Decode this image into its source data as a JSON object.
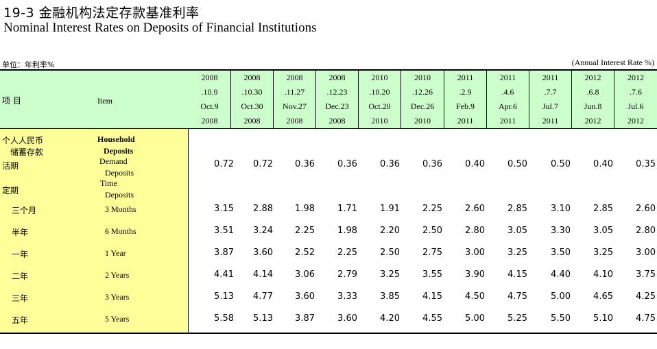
{
  "title_cn": "19-3  金融机构法定存款基准利率",
  "title_en": "Nominal Interest Rates on Deposits of Financial Institutions",
  "unit_cn": "单位：年利率%",
  "unit_en": "(Annual Interest Rate %)",
  "header": {
    "item_cn": "项  目",
    "item_en": "Item",
    "columns": [
      [
        "2008",
        ".10.9",
        "Oct.9",
        "2008"
      ],
      [
        "2008",
        ".10.30",
        "Oct.30",
        "2008"
      ],
      [
        "2008",
        ".11.27",
        "Nov.27",
        "2008"
      ],
      [
        "2008",
        ".12.23",
        "Dec.23",
        "2008"
      ],
      [
        "2010",
        ".10.20",
        "Oct.20",
        "2010"
      ],
      [
        "2010",
        ".12.26",
        "Dec.26",
        "2010"
      ],
      [
        "2011",
        ".2.9",
        "Feb.9",
        "2011"
      ],
      [
        "2011",
        ".4.6",
        "Apr.6",
        "2011"
      ],
      [
        "2011",
        ".7.7",
        "Jul.7",
        "2011"
      ],
      [
        "2012",
        ".6.8",
        "Jun.8",
        "2012"
      ],
      [
        "2012",
        ".7.6",
        "Jul.6",
        "2012"
      ]
    ]
  },
  "labels": {
    "household_cn": "个人人民币",
    "savings_cn": "储蓄存款",
    "household_en": "Household",
    "deposits_en": "Deposits",
    "demand_cn": "活期",
    "demand_en_1": "Demand",
    "demand_en_2": "Deposits",
    "time_cn": "定期",
    "time_en_1": "Time",
    "time_en_2": "Deposits"
  },
  "rows": [
    {
      "cn": "活期",
      "en": "",
      "values": [
        "0.72",
        "0.72",
        "0.36",
        "0.36",
        "0.36",
        "0.36",
        "0.40",
        "0.50",
        "0.50",
        "0.40",
        "0.35"
      ]
    },
    {
      "cn": "三个月",
      "en": "3 Months",
      "values": [
        "3.15",
        "2.88",
        "1.98",
        "1.71",
        "1.91",
        "2.25",
        "2.60",
        "2.85",
        "3.10",
        "2.85",
        "2.60"
      ]
    },
    {
      "cn": "半年",
      "en": "6 Months",
      "values": [
        "3.51",
        "3.24",
        "2.25",
        "1.98",
        "2.20",
        "2.50",
        "2.80",
        "3.05",
        "3.30",
        "3.05",
        "2.80"
      ]
    },
    {
      "cn": "一年",
      "en": "1 Year",
      "values": [
        "3.87",
        "3.60",
        "2.52",
        "2.25",
        "2.50",
        "2.75",
        "3.00",
        "3.25",
        "3.50",
        "3.25",
        "3.00"
      ]
    },
    {
      "cn": "二年",
      "en": "2 Years",
      "values": [
        "4.41",
        "4.14",
        "3.06",
        "2.79",
        "3.25",
        "3.55",
        "3.90",
        "4.15",
        "4.40",
        "4.10",
        "3.75"
      ]
    },
    {
      "cn": "三年",
      "en": "3 Years",
      "values": [
        "5.13",
        "4.77",
        "3.60",
        "3.33",
        "3.85",
        "4.15",
        "4.50",
        "4.75",
        "5.00",
        "4.65",
        "4.25"
      ]
    },
    {
      "cn": "五年",
      "en": "5 Years",
      "values": [
        "5.58",
        "5.13",
        "3.87",
        "3.60",
        "4.20",
        "4.55",
        "5.00",
        "5.25",
        "5.50",
        "5.10",
        "4.75"
      ]
    }
  ]
}
